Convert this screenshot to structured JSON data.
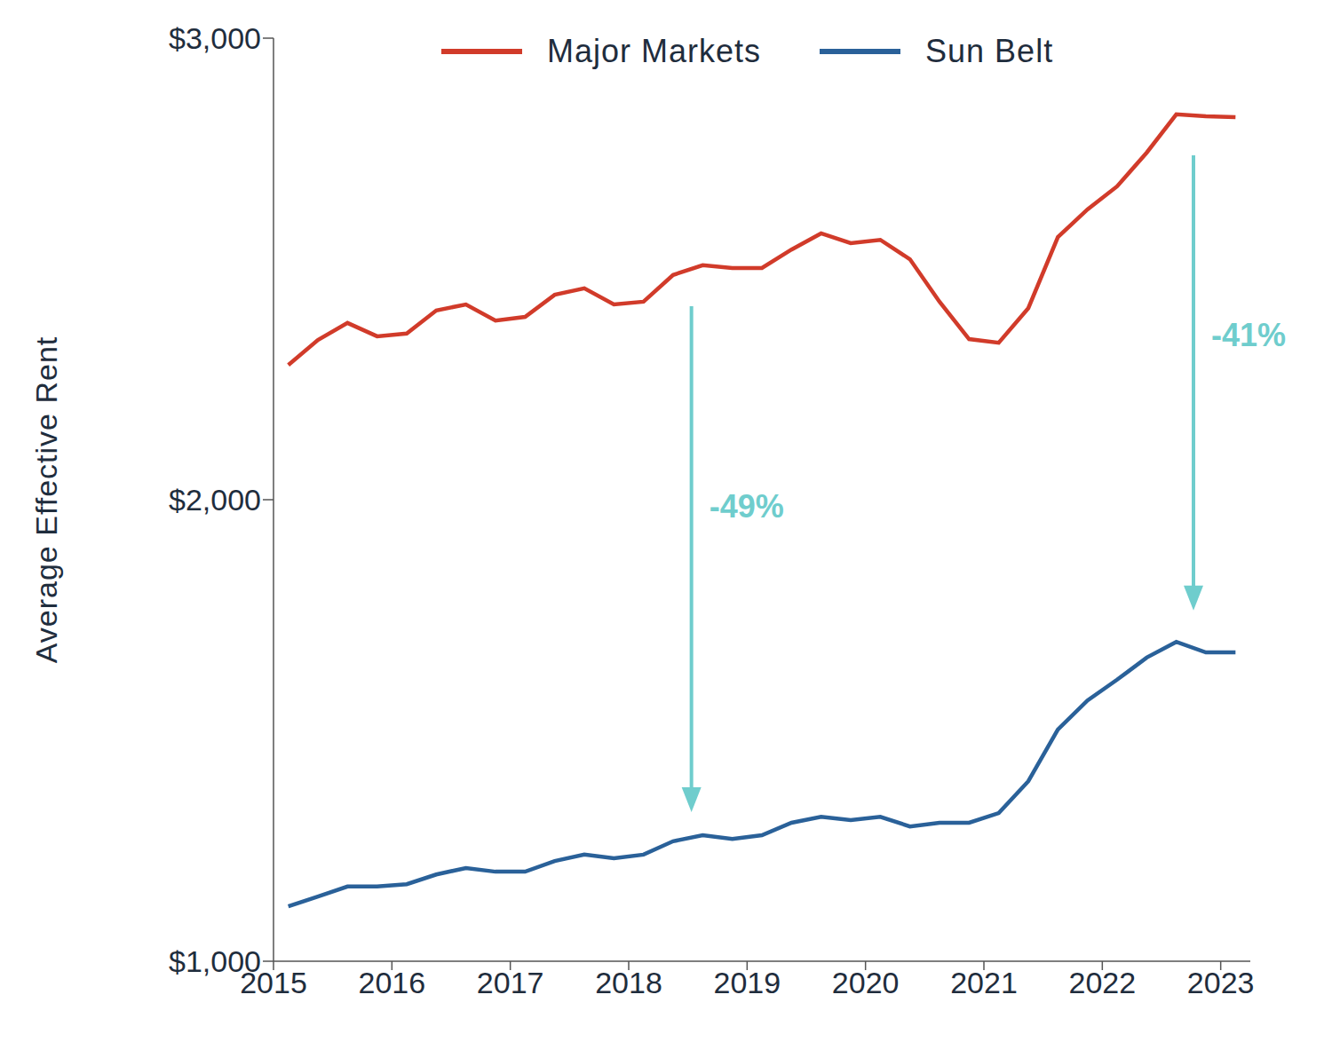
{
  "chart_data": {
    "type": "line",
    "y_label": "Average Effective Rent",
    "x": [
      2015.125,
      2015.375,
      2015.625,
      2015.875,
      2016.125,
      2016.375,
      2016.625,
      2016.875,
      2017.125,
      2017.375,
      2017.625,
      2017.875,
      2018.125,
      2018.375,
      2018.625,
      2018.875,
      2019.125,
      2019.375,
      2019.625,
      2019.875,
      2020.125,
      2020.375,
      2020.625,
      2020.875,
      2021.125,
      2021.375,
      2021.625,
      2021.875,
      2022.125,
      2022.375,
      2022.625,
      2022.875,
      2023.125
    ],
    "series": [
      {
        "name": "Major Markets",
        "color": "#d13b2a",
        "values": [
          2292,
          2346,
          2383,
          2354,
          2360,
          2410,
          2423,
          2388,
          2396,
          2444,
          2458,
          2423,
          2429,
          2487,
          2508,
          2502,
          2502,
          2542,
          2577,
          2556,
          2563,
          2521,
          2429,
          2348,
          2340,
          2415,
          2569,
          2629,
          2679,
          2752,
          2835,
          2831,
          2829
        ]
      },
      {
        "name": "Sun Belt",
        "color": "#2a6199",
        "values": [
          1119,
          1140,
          1162,
          1162,
          1167,
          1188,
          1202,
          1194,
          1194,
          1217,
          1231,
          1223,
          1231,
          1260,
          1273,
          1265,
          1273,
          1300,
          1313,
          1306,
          1313,
          1292,
          1300,
          1300,
          1321,
          1390,
          1502,
          1565,
          1610,
          1658,
          1692,
          1669,
          1669
        ]
      }
    ],
    "xlim": [
      2015,
      2023.25
    ],
    "xticks": [
      2015,
      2016,
      2017,
      2018,
      2019,
      2020,
      2021,
      2022,
      2023
    ],
    "ylim": [
      1000,
      3000
    ],
    "yticks": [
      {
        "value": 1000,
        "label": "$1,000"
      },
      {
        "value": 2000,
        "label": "$2,000"
      },
      {
        "value": 3000,
        "label": "$3,000"
      }
    ],
    "grid": false,
    "legend": "top",
    "annotations": [
      {
        "text": "-49%",
        "x": 2018.53,
        "y_start": 2419,
        "y_end": 1323,
        "color": "#6fcdcd"
      },
      {
        "text": "-41%",
        "x": 2022.77,
        "y_start": 2746,
        "y_end": 1760,
        "color": "#6fcdcd"
      }
    ]
  }
}
